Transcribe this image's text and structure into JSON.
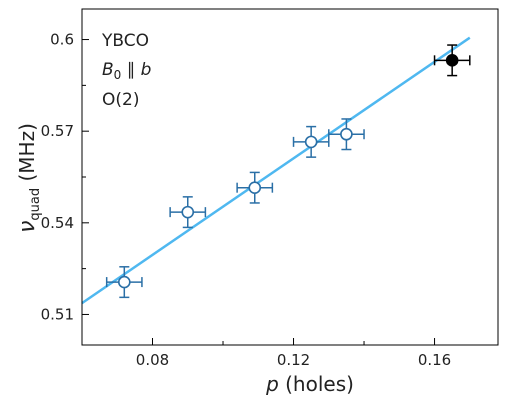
{
  "chart_data": {
    "type": "scatter",
    "xlabel": "p (holes)",
    "ylabel": "ν_quad (MHz)",
    "xlim": [
      0.06,
      0.178
    ],
    "ylim": [
      0.5,
      0.61
    ],
    "xticks": [
      0.08,
      0.12,
      0.16
    ],
    "xtick_labels": [
      "0.08",
      "0.12",
      "0.16"
    ],
    "yticks": [
      0.51,
      0.54,
      0.57,
      0.6
    ],
    "ytick_labels": [
      "0.51",
      "0.54",
      "0.57",
      "0.6"
    ],
    "annotations": [
      "YBCO",
      "B0 ∥ b",
      "O(2)"
    ],
    "series": [
      {
        "marker": "open-circle",
        "color": "#2a6fa6",
        "points": [
          {
            "x": 0.072,
            "y": 0.5206,
            "xerr": 0.005,
            "yerr": 0.005
          },
          {
            "x": 0.09,
            "y": 0.5435,
            "xerr": 0.005,
            "yerr": 0.005
          },
          {
            "x": 0.109,
            "y": 0.5515,
            "xerr": 0.005,
            "yerr": 0.005
          },
          {
            "x": 0.125,
            "y": 0.5665,
            "xerr": 0.005,
            "yerr": 0.005
          },
          {
            "x": 0.135,
            "y": 0.569,
            "xerr": 0.005,
            "yerr": 0.005
          }
        ]
      },
      {
        "marker": "filled-circle",
        "color": "#000000",
        "points": [
          {
            "x": 0.165,
            "y": 0.5932,
            "xerr": 0.005,
            "yerr": 0.005
          }
        ]
      }
    ],
    "fit_line": {
      "color": "#4fb8f0",
      "x": [
        0.06,
        0.17
      ],
      "y": [
        0.5137,
        0.6006
      ]
    },
    "grid": false
  }
}
